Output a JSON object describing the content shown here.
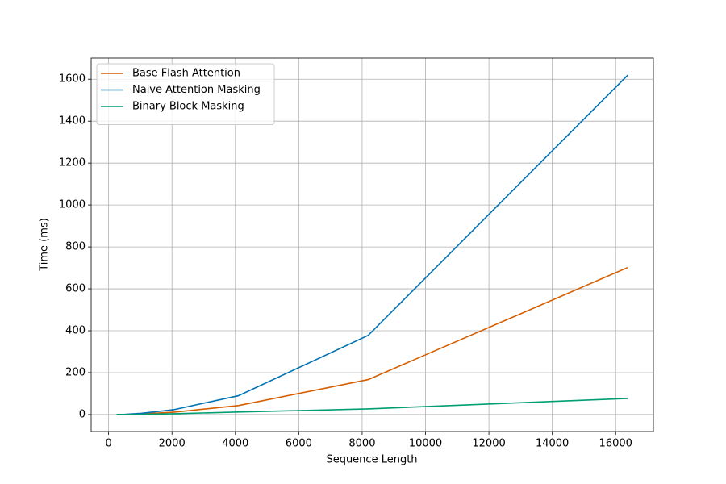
{
  "chart_data": {
    "type": "line",
    "xlabel": "Sequence Length",
    "ylabel": "Time (ms)",
    "x": [
      256,
      512,
      1024,
      2048,
      4096,
      8192,
      16384
    ],
    "series": [
      {
        "name": "Base Flash Attention",
        "color": "#d55e00",
        "values": [
          0.2,
          0.7,
          3,
          11,
          43,
          167,
          702
        ]
      },
      {
        "name": "Naive Attention Masking",
        "color": "#0072b2",
        "values": [
          0.3,
          1,
          6,
          23,
          90,
          378,
          1620
        ]
      },
      {
        "name": "Binary Block Masking",
        "color": "#009e73",
        "values": [
          0.1,
          0.3,
          1,
          4,
          12,
          27,
          77
        ]
      }
    ],
    "xlim": [
      -550.4,
      17190.4
    ],
    "xticks": [
      0,
      2000,
      4000,
      6000,
      8000,
      10000,
      12000,
      14000,
      16000
    ],
    "ylim": [
      -81,
      1701
    ],
    "yticks": [
      0,
      200,
      400,
      600,
      800,
      1000,
      1200,
      1400,
      1600
    ],
    "grid": true,
    "legend": "upper-left"
  }
}
